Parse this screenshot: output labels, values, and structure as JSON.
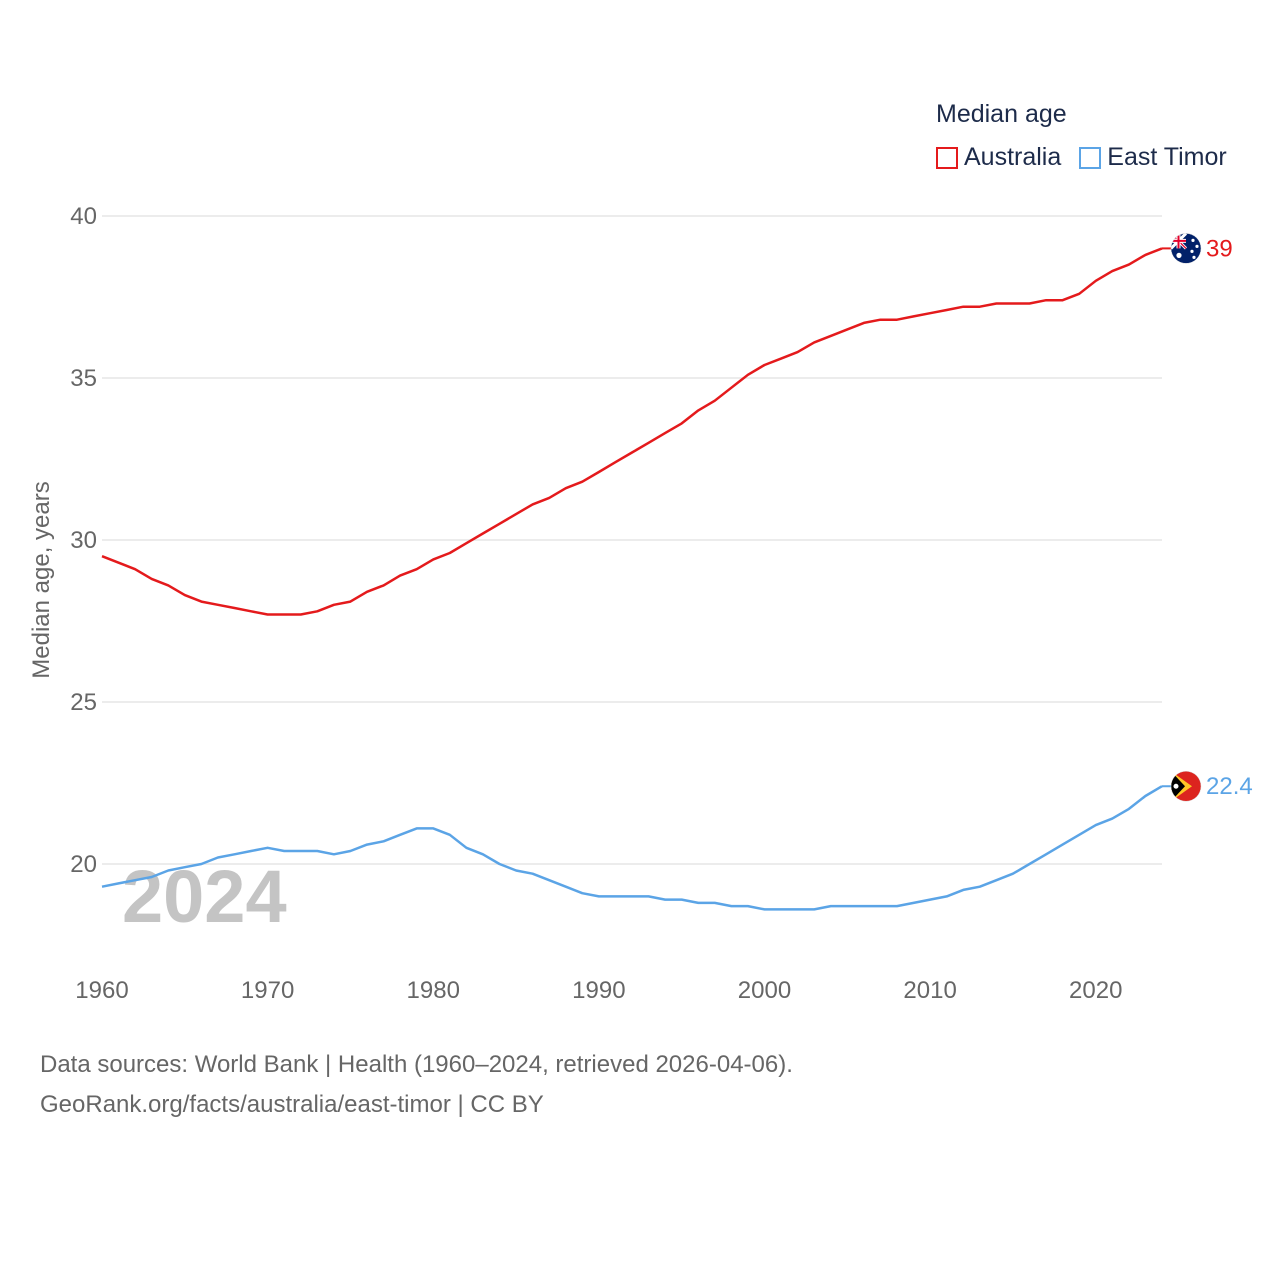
{
  "chart_data": {
    "type": "line",
    "legend_title": "Median age",
    "ylabel": "Median age, years",
    "ylim": [
      17.5,
      40
    ],
    "yticks": [
      20,
      25,
      30,
      35,
      40
    ],
    "xlim": [
      1960,
      2024
    ],
    "xticks": [
      1960,
      1970,
      1980,
      1990,
      2000,
      2010,
      2020
    ],
    "watermark_year": "2024",
    "series": [
      {
        "name": "Australia",
        "color": "#e41a1c",
        "end_label": "39",
        "flag": "australia-flag",
        "x": [
          1960,
          1961,
          1962,
          1963,
          1964,
          1965,
          1966,
          1967,
          1968,
          1969,
          1970,
          1971,
          1972,
          1973,
          1974,
          1975,
          1976,
          1977,
          1978,
          1979,
          1980,
          1981,
          1982,
          1983,
          1984,
          1985,
          1986,
          1987,
          1988,
          1989,
          1990,
          1991,
          1992,
          1993,
          1994,
          1995,
          1996,
          1997,
          1998,
          1999,
          2000,
          2001,
          2002,
          2003,
          2004,
          2005,
          2006,
          2007,
          2008,
          2009,
          2010,
          2011,
          2012,
          2013,
          2014,
          2015,
          2016,
          2017,
          2018,
          2019,
          2020,
          2021,
          2022,
          2023,
          2024
        ],
        "values": [
          29.5,
          29.3,
          29.1,
          28.8,
          28.6,
          28.3,
          28.1,
          28.0,
          27.9,
          27.8,
          27.7,
          27.7,
          27.7,
          27.8,
          28.0,
          28.1,
          28.4,
          28.6,
          28.9,
          29.1,
          29.4,
          29.6,
          29.9,
          30.2,
          30.5,
          30.8,
          31.1,
          31.3,
          31.6,
          31.8,
          32.1,
          32.4,
          32.7,
          33.0,
          33.3,
          33.6,
          34.0,
          34.3,
          34.7,
          35.1,
          35.4,
          35.6,
          35.8,
          36.1,
          36.3,
          36.5,
          36.7,
          36.8,
          36.8,
          36.9,
          37.0,
          37.1,
          37.2,
          37.2,
          37.3,
          37.3,
          37.3,
          37.4,
          37.4,
          37.6,
          38.0,
          38.3,
          38.5,
          38.8,
          39.0
        ]
      },
      {
        "name": "East Timor",
        "color": "#5ba4e6",
        "end_label": "22.4",
        "flag": "east-timor-flag",
        "x": [
          1960,
          1961,
          1962,
          1963,
          1964,
          1965,
          1966,
          1967,
          1968,
          1969,
          1970,
          1971,
          1972,
          1973,
          1974,
          1975,
          1976,
          1977,
          1978,
          1979,
          1980,
          1981,
          1982,
          1983,
          1984,
          1985,
          1986,
          1987,
          1988,
          1989,
          1990,
          1991,
          1992,
          1993,
          1994,
          1995,
          1996,
          1997,
          1998,
          1999,
          2000,
          2001,
          2002,
          2003,
          2004,
          2005,
          2006,
          2007,
          2008,
          2009,
          2010,
          2011,
          2012,
          2013,
          2014,
          2015,
          2016,
          2017,
          2018,
          2019,
          2020,
          2021,
          2022,
          2023,
          2024
        ],
        "values": [
          19.3,
          19.4,
          19.5,
          19.6,
          19.8,
          19.9,
          20.0,
          20.2,
          20.3,
          20.4,
          20.5,
          20.4,
          20.4,
          20.4,
          20.3,
          20.4,
          20.6,
          20.7,
          20.9,
          21.1,
          21.1,
          20.9,
          20.5,
          20.3,
          20.0,
          19.8,
          19.7,
          19.5,
          19.3,
          19.1,
          19.0,
          19.0,
          19.0,
          19.0,
          18.9,
          18.9,
          18.8,
          18.8,
          18.7,
          18.7,
          18.6,
          18.6,
          18.6,
          18.6,
          18.7,
          18.7,
          18.7,
          18.7,
          18.7,
          18.8,
          18.9,
          19.0,
          19.2,
          19.3,
          19.5,
          19.7,
          20.0,
          20.3,
          20.6,
          20.9,
          21.2,
          21.4,
          21.7,
          22.1,
          22.4
        ]
      }
    ]
  },
  "footer": {
    "line1": "Data sources: World Bank | Health (1960–2024, retrieved 2026-04-06).",
    "line2": "GeoRank.org/facts/australia/east-timor | CC BY"
  }
}
